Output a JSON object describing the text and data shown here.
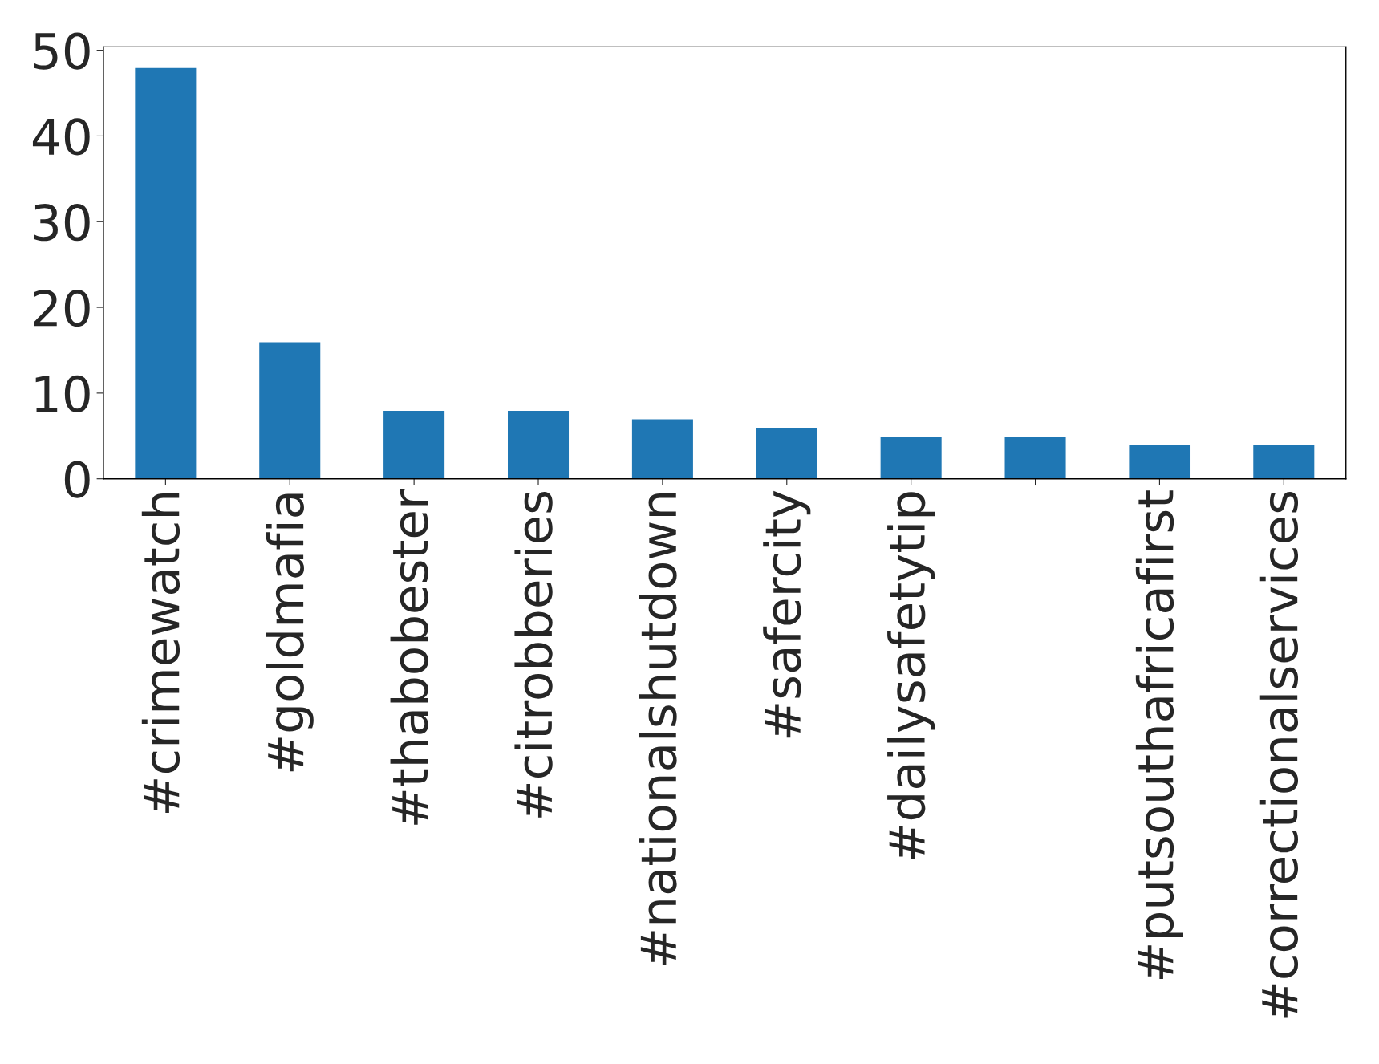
{
  "chart_data": {
    "type": "bar",
    "categories": [
      "#crimewatch",
      "#goldmafia",
      "#thabobester",
      "#citrobberies",
      "#nationalshutdown",
      "#safercity",
      "#dailysafetytip",
      null,
      "#putsouthafricafirst",
      "#correctionalservices"
    ],
    "values": [
      48,
      16,
      8,
      8,
      7,
      6,
      5,
      5,
      4,
      4
    ],
    "color": "#1f77b4",
    "ylim": [
      0,
      50.4
    ],
    "yticks": [
      0,
      10,
      20,
      30,
      40,
      50
    ],
    "grid": false,
    "legend": false
  }
}
